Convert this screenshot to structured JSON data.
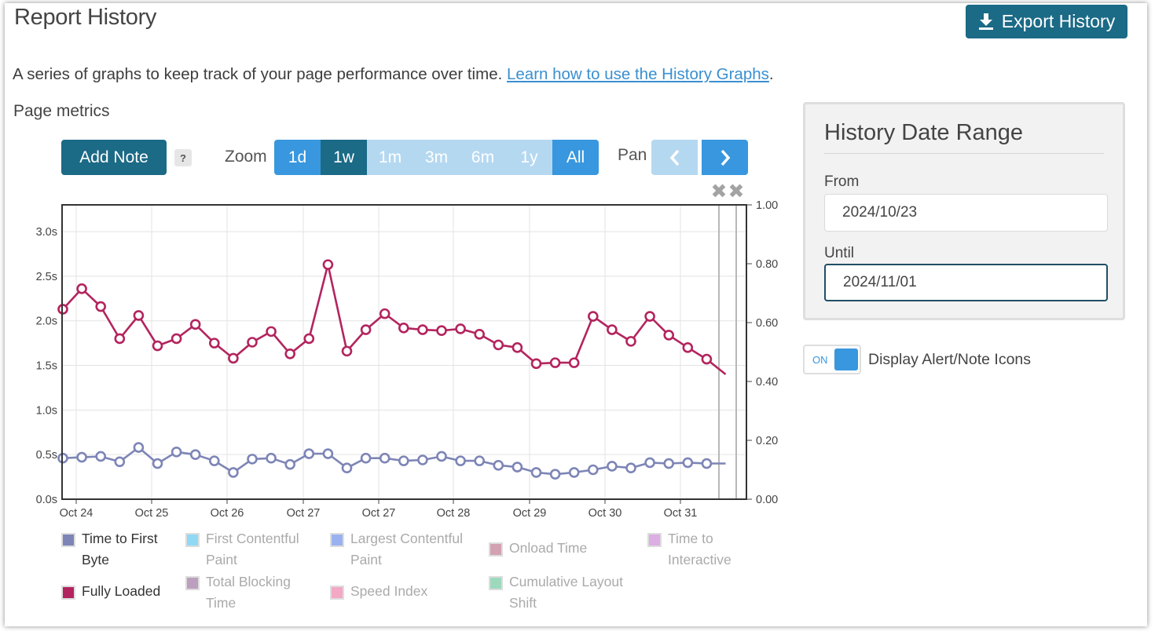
{
  "header": {
    "title": "Report History",
    "export_label": "Export History",
    "description": "A series of graphs to keep track of your page performance over time.",
    "help_link": "Learn how to use the History Graphs",
    "description_end": "."
  },
  "section_title": "Page metrics",
  "controls": {
    "add_note": "Add Note",
    "help": "?",
    "zoom_label": "Zoom",
    "zoom_options": [
      "1d",
      "1w",
      "1m",
      "3m",
      "6m",
      "1y",
      "All"
    ],
    "zoom_selected": "1w",
    "pan_label": "Pan"
  },
  "date_range": {
    "title": "History Date Range",
    "from_label": "From",
    "from_value": "2024/10/23",
    "until_label": "Until",
    "until_value": "2024/11/01"
  },
  "alert_toggle": {
    "state": "ON",
    "label": "Display Alert/Note Icons"
  },
  "legend": [
    {
      "name": "Time to First Byte",
      "lines": [
        "Time to First",
        "Byte"
      ],
      "color": "#7d85b6",
      "active": true
    },
    {
      "name": "First Contentful Paint",
      "lines": [
        "First Contentful",
        "Paint"
      ],
      "color": "#8fd9f5",
      "active": false
    },
    {
      "name": "Largest Contentful Paint",
      "lines": [
        "Largest Contentful",
        "Paint"
      ],
      "color": "#99b2ef",
      "active": false
    },
    {
      "name": "Onload Time",
      "lines": [
        "Onload Time"
      ],
      "color": "#d2a2b3",
      "active": false
    },
    {
      "name": "Time to Interactive",
      "lines": [
        "Time to",
        "Interactive"
      ],
      "color": "#dcaee4",
      "active": false
    },
    {
      "name": "Fully Loaded",
      "lines": [
        "Fully Loaded"
      ],
      "color": "#b3245e",
      "active": true
    },
    {
      "name": "Total Blocking Time",
      "lines": [
        "Total Blocking",
        "Time"
      ],
      "color": "#bc9fbf",
      "active": false
    },
    {
      "name": "Speed Index",
      "lines": [
        "Speed Index"
      ],
      "color": "#f3a8c6",
      "active": false
    },
    {
      "name": "Cumulative Layout Shift",
      "lines": [
        "Cumulative Layout",
        "Shift"
      ],
      "color": "#9cd9bd",
      "active": false
    }
  ],
  "chart_data": {
    "type": "line",
    "x_tick_labels": [
      "Oct 24",
      "Oct 25",
      "Oct 26",
      "Oct 27",
      "Oct 27",
      "Oct 28",
      "Oct 29",
      "Oct 30",
      "Oct 31"
    ],
    "y_left_ticks": [
      "0.0s",
      "0.5s",
      "1.0s",
      "1.5s",
      "2.0s",
      "2.5s",
      "3.0s"
    ],
    "y_left_range": [
      0,
      3.3
    ],
    "y_right_ticks": [
      "0.00",
      "0.20",
      "0.40",
      "0.60",
      "0.80",
      "1.00"
    ],
    "y_right_range": [
      0,
      1
    ],
    "grid": true,
    "series": [
      {
        "name": "Fully Loaded",
        "color": "#b3245e",
        "values": [
          2.13,
          2.36,
          2.16,
          1.8,
          2.06,
          1.72,
          1.8,
          1.96,
          1.75,
          1.58,
          1.76,
          1.88,
          1.63,
          1.8,
          2.63,
          1.66,
          1.9,
          2.08,
          1.92,
          1.9,
          1.89,
          1.91,
          1.85,
          1.73,
          1.7,
          1.52,
          1.53,
          1.53,
          2.05,
          1.9,
          1.77,
          2.05,
          1.84,
          1.7,
          1.57,
          1.4
        ]
      },
      {
        "name": "Time to First Byte",
        "color": "#7d85b6",
        "values": [
          0.46,
          0.47,
          0.48,
          0.42,
          0.58,
          0.4,
          0.53,
          0.5,
          0.43,
          0.3,
          0.45,
          0.46,
          0.39,
          0.51,
          0.51,
          0.35,
          0.46,
          0.46,
          0.43,
          0.44,
          0.48,
          0.43,
          0.43,
          0.38,
          0.36,
          0.3,
          0.28,
          0.3,
          0.33,
          0.37,
          0.35,
          0.41,
          0.4,
          0.41,
          0.4,
          0.4
        ]
      }
    ]
  }
}
